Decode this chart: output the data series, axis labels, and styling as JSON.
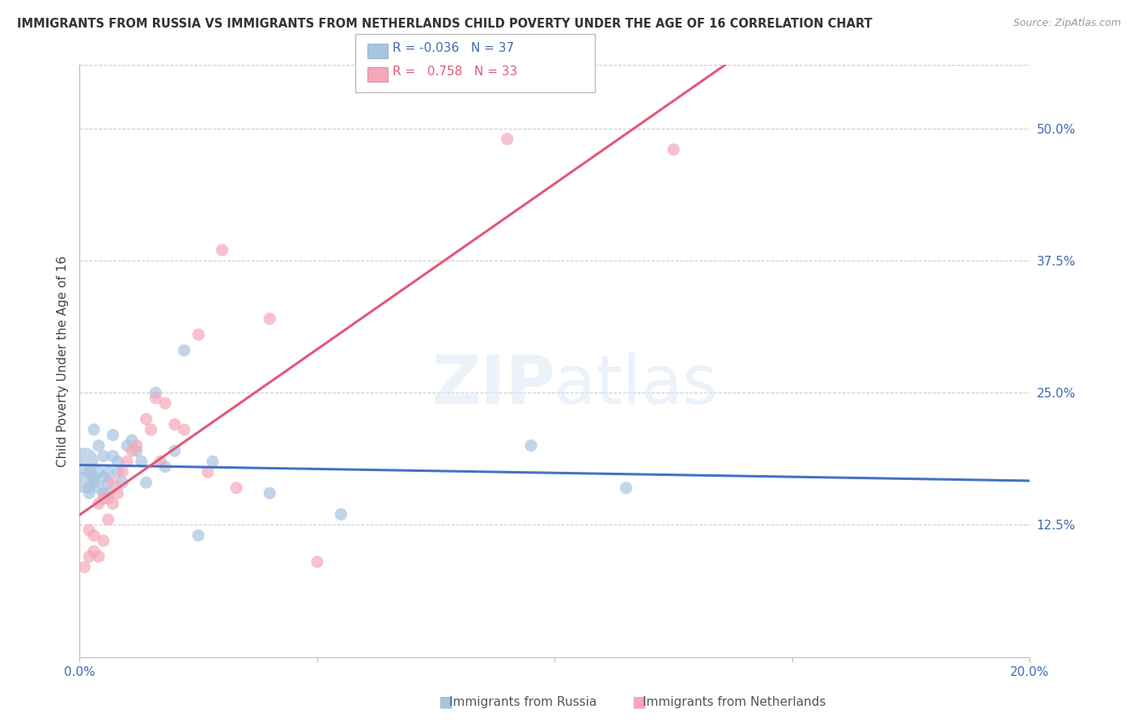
{
  "title": "IMMIGRANTS FROM RUSSIA VS IMMIGRANTS FROM NETHERLANDS CHILD POVERTY UNDER THE AGE OF 16 CORRELATION CHART",
  "source": "Source: ZipAtlas.com",
  "ylabel": "Child Poverty Under the Age of 16",
  "xmin": 0.0,
  "xmax": 0.2,
  "ymin": 0.0,
  "ymax": 0.56,
  "yticks": [
    0.0,
    0.125,
    0.25,
    0.375,
    0.5
  ],
  "ytick_labels": [
    "",
    "12.5%",
    "25.0%",
    "37.5%",
    "50.0%"
  ],
  "russia_R": -0.036,
  "russia_N": 37,
  "netherlands_R": 0.758,
  "netherlands_N": 33,
  "russia_color": "#a8c4e0",
  "netherlands_color": "#f4a8b8",
  "russia_line_color": "#4472c4",
  "netherlands_line_color": "#e05878",
  "russia_x": [
    0.001,
    0.001,
    0.002,
    0.002,
    0.002,
    0.003,
    0.003,
    0.003,
    0.004,
    0.004,
    0.004,
    0.005,
    0.005,
    0.005,
    0.006,
    0.006,
    0.006,
    0.007,
    0.007,
    0.008,
    0.008,
    0.009,
    0.01,
    0.011,
    0.012,
    0.013,
    0.014,
    0.016,
    0.018,
    0.02,
    0.022,
    0.025,
    0.028,
    0.04,
    0.055,
    0.095,
    0.115
  ],
  "russia_y": [
    0.185,
    0.165,
    0.175,
    0.16,
    0.155,
    0.17,
    0.165,
    0.215,
    0.16,
    0.175,
    0.2,
    0.155,
    0.17,
    0.19,
    0.155,
    0.165,
    0.175,
    0.19,
    0.21,
    0.175,
    0.185,
    0.165,
    0.2,
    0.205,
    0.195,
    0.185,
    0.165,
    0.25,
    0.18,
    0.195,
    0.29,
    0.115,
    0.185,
    0.155,
    0.135,
    0.2,
    0.16
  ],
  "russia_sizes": [
    600,
    350,
    120,
    120,
    120,
    120,
    120,
    120,
    120,
    120,
    120,
    120,
    120,
    120,
    120,
    120,
    120,
    120,
    120,
    120,
    120,
    120,
    120,
    120,
    120,
    120,
    120,
    120,
    120,
    120,
    120,
    120,
    120,
    120,
    120,
    120,
    120
  ],
  "netherlands_x": [
    0.001,
    0.002,
    0.002,
    0.003,
    0.003,
    0.004,
    0.004,
    0.005,
    0.005,
    0.006,
    0.006,
    0.007,
    0.007,
    0.008,
    0.009,
    0.01,
    0.011,
    0.012,
    0.014,
    0.015,
    0.016,
    0.017,
    0.018,
    0.02,
    0.022,
    0.025,
    0.027,
    0.03,
    0.033,
    0.04,
    0.05,
    0.09,
    0.125
  ],
  "netherlands_y": [
    0.085,
    0.095,
    0.12,
    0.1,
    0.115,
    0.095,
    0.145,
    0.11,
    0.15,
    0.13,
    0.15,
    0.145,
    0.165,
    0.155,
    0.175,
    0.185,
    0.195,
    0.2,
    0.225,
    0.215,
    0.245,
    0.185,
    0.24,
    0.22,
    0.215,
    0.305,
    0.175,
    0.385,
    0.16,
    0.32,
    0.09,
    0.49,
    0.48
  ],
  "netherlands_sizes": [
    120,
    120,
    120,
    120,
    120,
    120,
    120,
    120,
    120,
    120,
    120,
    120,
    120,
    120,
    120,
    120,
    120,
    120,
    120,
    120,
    120,
    120,
    120,
    120,
    120,
    120,
    120,
    120,
    120,
    120,
    120,
    120,
    120
  ],
  "legend_russia_text": "R = -0.036   N = 37",
  "legend_neth_text": "R =  0.758   N = 33",
  "bottom_legend_russia": "Immigrants from Russia",
  "bottom_legend_neth": "Immigrants from Netherlands"
}
